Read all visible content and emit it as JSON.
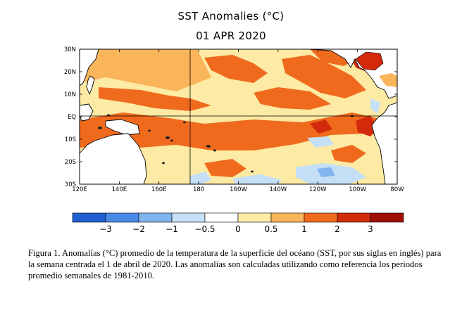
{
  "chart_data": {
    "type": "heatmap",
    "title": "SST Anomalies (°C)",
    "subtitle": "01 APR 2020",
    "y_ticks": [
      "30N",
      "20N",
      "10N",
      "EQ",
      "10S",
      "20S",
      "30S"
    ],
    "x_ticks": [
      "120E",
      "140E",
      "160E",
      "180",
      "160W",
      "140W",
      "120W",
      "100W",
      "80W"
    ],
    "colorbar": {
      "bounds": [
        -4,
        -3,
        -2,
        -1,
        -0.5,
        0,
        0.5,
        1,
        2,
        3,
        4
      ],
      "labels": [
        "−3",
        "−2",
        "−1",
        "−0.5",
        "0",
        "0.5",
        "1",
        "2",
        "3"
      ],
      "colors": [
        "#1f5fd0",
        "#4a8ae6",
        "#82b4ee",
        "#c4dff6",
        "#ffffff",
        "#fdeaa4",
        "#fab45a",
        "#f06a1e",
        "#d22a0a",
        "#a01006"
      ]
    }
  },
  "caption": "Figura 1. Anomalías (°C) promedio de la temperatura de la superficie del océano (SST, por sus siglas en inglés) para la semana centrada el 1 de abril de 2020. Las anomalías son calculadas utilizando como referencia los periodos promedio semanales de 1981-2010."
}
